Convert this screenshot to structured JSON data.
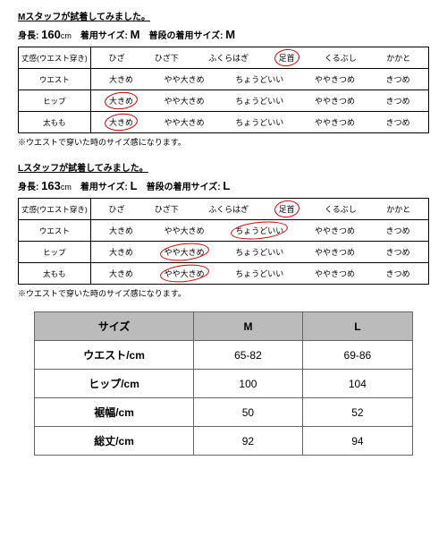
{
  "sections": [
    {
      "title": "Mスタッフが試着してみました。",
      "height_label": "身長:",
      "height_val": "160",
      "height_unit": "cm",
      "wear_label": "着用サイズ:",
      "wear_val": "M",
      "usual_label": "普段の着用サイズ:",
      "usual_val": "M",
      "rows": [
        {
          "label": "丈感(ウエスト穿き)",
          "opts": [
            "ひざ",
            "ひざ下",
            "ふくらはぎ",
            "足首",
            "くるぶし",
            "かかと"
          ],
          "sel": 3
        },
        {
          "label": "ウエスト",
          "opts": [
            "大きめ",
            "やや大きめ",
            "ちょうどいい",
            "ややきつめ",
            "きつめ"
          ],
          "sel": -1
        },
        {
          "label": "ヒップ",
          "opts": [
            "大きめ",
            "やや大きめ",
            "ちょうどいい",
            "ややきつめ",
            "きつめ"
          ],
          "sel": 0
        },
        {
          "label": "太もも",
          "opts": [
            "大きめ",
            "やや大きめ",
            "ちょうどいい",
            "ややきつめ",
            "きつめ"
          ],
          "sel": 0
        }
      ],
      "note": "※ウエストで穿いた時のサイズ感になります。"
    },
    {
      "title": "Lスタッフが試着してみました。",
      "height_label": "身長:",
      "height_val": "163",
      "height_unit": "cm",
      "wear_label": "着用サイズ:",
      "wear_val": "L",
      "usual_label": "普段の着用サイズ:",
      "usual_val": "L",
      "rows": [
        {
          "label": "丈感(ウエスト穿き)",
          "opts": [
            "ひざ",
            "ひざ下",
            "ふくらはぎ",
            "足首",
            "くるぶし",
            "かかと"
          ],
          "sel": 3
        },
        {
          "label": "ウエスト",
          "opts": [
            "大きめ",
            "やや大きめ",
            "ちょうどいい",
            "ややきつめ",
            "きつめ"
          ],
          "sel": 2
        },
        {
          "label": "ヒップ",
          "opts": [
            "大きめ",
            "やや大きめ",
            "ちょうどいい",
            "ややきつめ",
            "きつめ"
          ],
          "sel": 1
        },
        {
          "label": "太もも",
          "opts": [
            "大きめ",
            "やや大きめ",
            "ちょうどいい",
            "ややきつめ",
            "きつめ"
          ],
          "sel": 1
        }
      ],
      "note": "※ウエストで穿いた時のサイズ感になります。"
    }
  ],
  "size_table": {
    "header": [
      "サイズ",
      "M",
      "L"
    ],
    "rows": [
      [
        "ウエスト/cm",
        "65-82",
        "69-86"
      ],
      [
        "ヒップ/cm",
        "100",
        "104"
      ],
      [
        "裾幅/cm",
        "50",
        "52"
      ],
      [
        "総丈/cm",
        "92",
        "94"
      ]
    ]
  }
}
